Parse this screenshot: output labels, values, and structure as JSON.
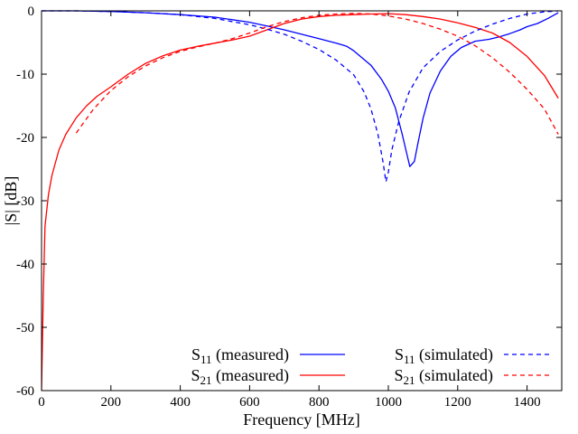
{
  "chart_data": {
    "type": "line",
    "xlabel": "Frequency [MHz]",
    "ylabel": "|S| [dB]",
    "xlim": [
      0,
      1500
    ],
    "ylim": [
      -60,
      0
    ],
    "xticks": [
      0,
      200,
      400,
      600,
      800,
      1000,
      1200,
      1400
    ],
    "yticks": [
      0,
      -10,
      -20,
      -30,
      -40,
      -50,
      -60
    ],
    "xtick_labels": [
      "0",
      "200",
      "400",
      "600",
      "800",
      "1000",
      "1200",
      "1400"
    ],
    "ytick_labels": [
      "0",
      "-10",
      "-20",
      "-30",
      "-40",
      "-50",
      "-60"
    ],
    "grid": false,
    "legend_position": "bottom-right",
    "series": [
      {
        "name_main": "S",
        "name_sub": "11",
        "name_rest": " (measured)",
        "color": "#0000ff",
        "dash": "solid",
        "points": [
          [
            0,
            0
          ],
          [
            100,
            0
          ],
          [
            200,
            -0.1
          ],
          [
            300,
            -0.3
          ],
          [
            400,
            -0.6
          ],
          [
            500,
            -1.0
          ],
          [
            600,
            -1.8
          ],
          [
            650,
            -2.4
          ],
          [
            700,
            -3.0
          ],
          [
            750,
            -3.7
          ],
          [
            800,
            -4.4
          ],
          [
            850,
            -5.1
          ],
          [
            880,
            -5.6
          ],
          [
            900,
            -6.3
          ],
          [
            950,
            -8.6
          ],
          [
            980,
            -10.8
          ],
          [
            1000,
            -12.7
          ],
          [
            1020,
            -15.3
          ],
          [
            1040,
            -19.5
          ],
          [
            1055,
            -23.0
          ],
          [
            1062,
            -24.6
          ],
          [
            1075,
            -23.8
          ],
          [
            1085,
            -21.0
          ],
          [
            1100,
            -17.0
          ],
          [
            1120,
            -13.0
          ],
          [
            1150,
            -9.5
          ],
          [
            1180,
            -7.2
          ],
          [
            1210,
            -5.8
          ],
          [
            1250,
            -4.8
          ],
          [
            1290,
            -4.5
          ],
          [
            1320,
            -4.1
          ],
          [
            1350,
            -3.6
          ],
          [
            1380,
            -3.0
          ],
          [
            1400,
            -2.5
          ],
          [
            1430,
            -2.0
          ],
          [
            1460,
            -1.2
          ],
          [
            1490,
            -0.3
          ]
        ]
      },
      {
        "name_main": "S",
        "name_sub": "21",
        "name_rest": " (measured)",
        "color": "#ff0000",
        "dash": "solid",
        "points": [
          [
            0,
            -60
          ],
          [
            5,
            -45
          ],
          [
            10,
            -34.0
          ],
          [
            20,
            -29.0
          ],
          [
            30,
            -26.0
          ],
          [
            50,
            -22.0
          ],
          [
            70,
            -19.5
          ],
          [
            100,
            -16.9
          ],
          [
            130,
            -15.0
          ],
          [
            160,
            -13.5
          ],
          [
            200,
            -12.0
          ],
          [
            250,
            -10.0
          ],
          [
            300,
            -8.3
          ],
          [
            350,
            -7.1
          ],
          [
            400,
            -6.2
          ],
          [
            450,
            -5.6
          ],
          [
            500,
            -5.1
          ],
          [
            550,
            -4.6
          ],
          [
            600,
            -4.0
          ],
          [
            650,
            -3.0
          ],
          [
            700,
            -2.0
          ],
          [
            750,
            -1.3
          ],
          [
            800,
            -0.9
          ],
          [
            850,
            -0.7
          ],
          [
            900,
            -0.6
          ],
          [
            950,
            -0.5
          ],
          [
            1000,
            -0.45
          ],
          [
            1050,
            -0.6
          ],
          [
            1100,
            -0.9
          ],
          [
            1150,
            -1.3
          ],
          [
            1200,
            -1.9
          ],
          [
            1250,
            -2.6
          ],
          [
            1300,
            -3.5
          ],
          [
            1350,
            -5.0
          ],
          [
            1400,
            -7.2
          ],
          [
            1450,
            -10.2
          ],
          [
            1490,
            -13.8
          ]
        ]
      },
      {
        "name_main": "S",
        "name_sub": "11",
        "name_rest": " (simulated)",
        "color": "#0000ff",
        "dash": "dashed",
        "points": [
          [
            0,
            0
          ],
          [
            100,
            0
          ],
          [
            200,
            -0.1
          ],
          [
            300,
            -0.3
          ],
          [
            400,
            -0.6
          ],
          [
            500,
            -1.2
          ],
          [
            600,
            -2.2
          ],
          [
            650,
            -2.9
          ],
          [
            700,
            -3.7
          ],
          [
            750,
            -4.8
          ],
          [
            800,
            -6.1
          ],
          [
            850,
            -7.8
          ],
          [
            900,
            -10.1
          ],
          [
            930,
            -12.8
          ],
          [
            950,
            -15.5
          ],
          [
            970,
            -19.5
          ],
          [
            985,
            -24.0
          ],
          [
            993,
            -27.0
          ],
          [
            1000,
            -25.5
          ],
          [
            1010,
            -22.0
          ],
          [
            1030,
            -17.5
          ],
          [
            1060,
            -12.8
          ],
          [
            1100,
            -9.0
          ],
          [
            1150,
            -6.4
          ],
          [
            1200,
            -4.6
          ],
          [
            1250,
            -3.2
          ],
          [
            1300,
            -2.1
          ],
          [
            1350,
            -1.2
          ],
          [
            1400,
            -0.5
          ],
          [
            1450,
            -0.15
          ],
          [
            1490,
            0
          ]
        ]
      },
      {
        "name_main": "S",
        "name_sub": "21",
        "name_rest": " (simulated)",
        "color": "#ff0000",
        "dash": "dashed",
        "points": [
          [
            100,
            -19.3
          ],
          [
            150,
            -15.5
          ],
          [
            200,
            -12.6
          ],
          [
            250,
            -10.4
          ],
          [
            300,
            -8.7
          ],
          [
            350,
            -7.4
          ],
          [
            400,
            -6.4
          ],
          [
            450,
            -5.7
          ],
          [
            500,
            -5.1
          ],
          [
            550,
            -4.4
          ],
          [
            600,
            -3.5
          ],
          [
            650,
            -2.5
          ],
          [
            700,
            -1.7
          ],
          [
            750,
            -1.1
          ],
          [
            800,
            -0.7
          ],
          [
            850,
            -0.5
          ],
          [
            900,
            -0.4
          ],
          [
            950,
            -0.5
          ],
          [
            1000,
            -0.8
          ],
          [
            1050,
            -1.3
          ],
          [
            1100,
            -2.0
          ],
          [
            1150,
            -2.9
          ],
          [
            1200,
            -4.0
          ],
          [
            1250,
            -5.5
          ],
          [
            1300,
            -7.4
          ],
          [
            1350,
            -9.7
          ],
          [
            1400,
            -12.4
          ],
          [
            1450,
            -15.5
          ],
          [
            1490,
            -19.5
          ]
        ]
      }
    ]
  }
}
